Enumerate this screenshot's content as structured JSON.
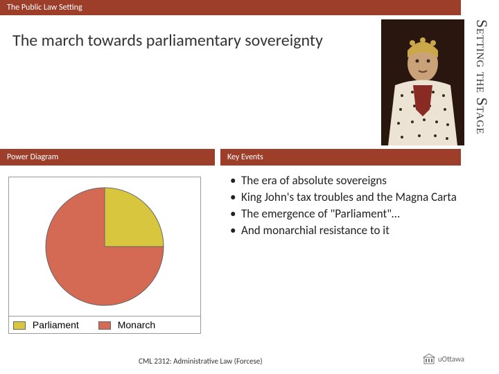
{
  "topbar": {
    "label": "The Public Law Setting"
  },
  "spine": {
    "text": "Setting the Stage"
  },
  "subtitle": {
    "text": "The march towards parliamentary sovereignty"
  },
  "columns": {
    "left_label": "Power Diagram",
    "right_label": "Key Events"
  },
  "pie": {
    "type": "pie",
    "radius": 85,
    "slices": [
      {
        "label": "Parliament",
        "value": 25,
        "color": "#d8c73e"
      },
      {
        "label": "Monarch",
        "value": 75,
        "color": "#d46a54"
      }
    ],
    "start_angle_deg": -90,
    "border_color": "#666666",
    "background": "#ffffff"
  },
  "legend": {
    "items": [
      {
        "swatch": "#d8c73e",
        "label": "Parliament"
      },
      {
        "swatch": "#d46a54",
        "label": "Monarch"
      }
    ]
  },
  "events": {
    "items": [
      "The era of absolute sovereigns",
      "King John's tax troubles and the Magna Carta",
      "The emergence of \"Parliament\"…",
      "And monarchial resistance to it"
    ]
  },
  "footer": {
    "text": "CML 2312: Administrative Law (Forcese)"
  },
  "logo": {
    "text": "uOttawa"
  },
  "colors": {
    "bar": "#9c3e2a",
    "text": "#333333"
  }
}
